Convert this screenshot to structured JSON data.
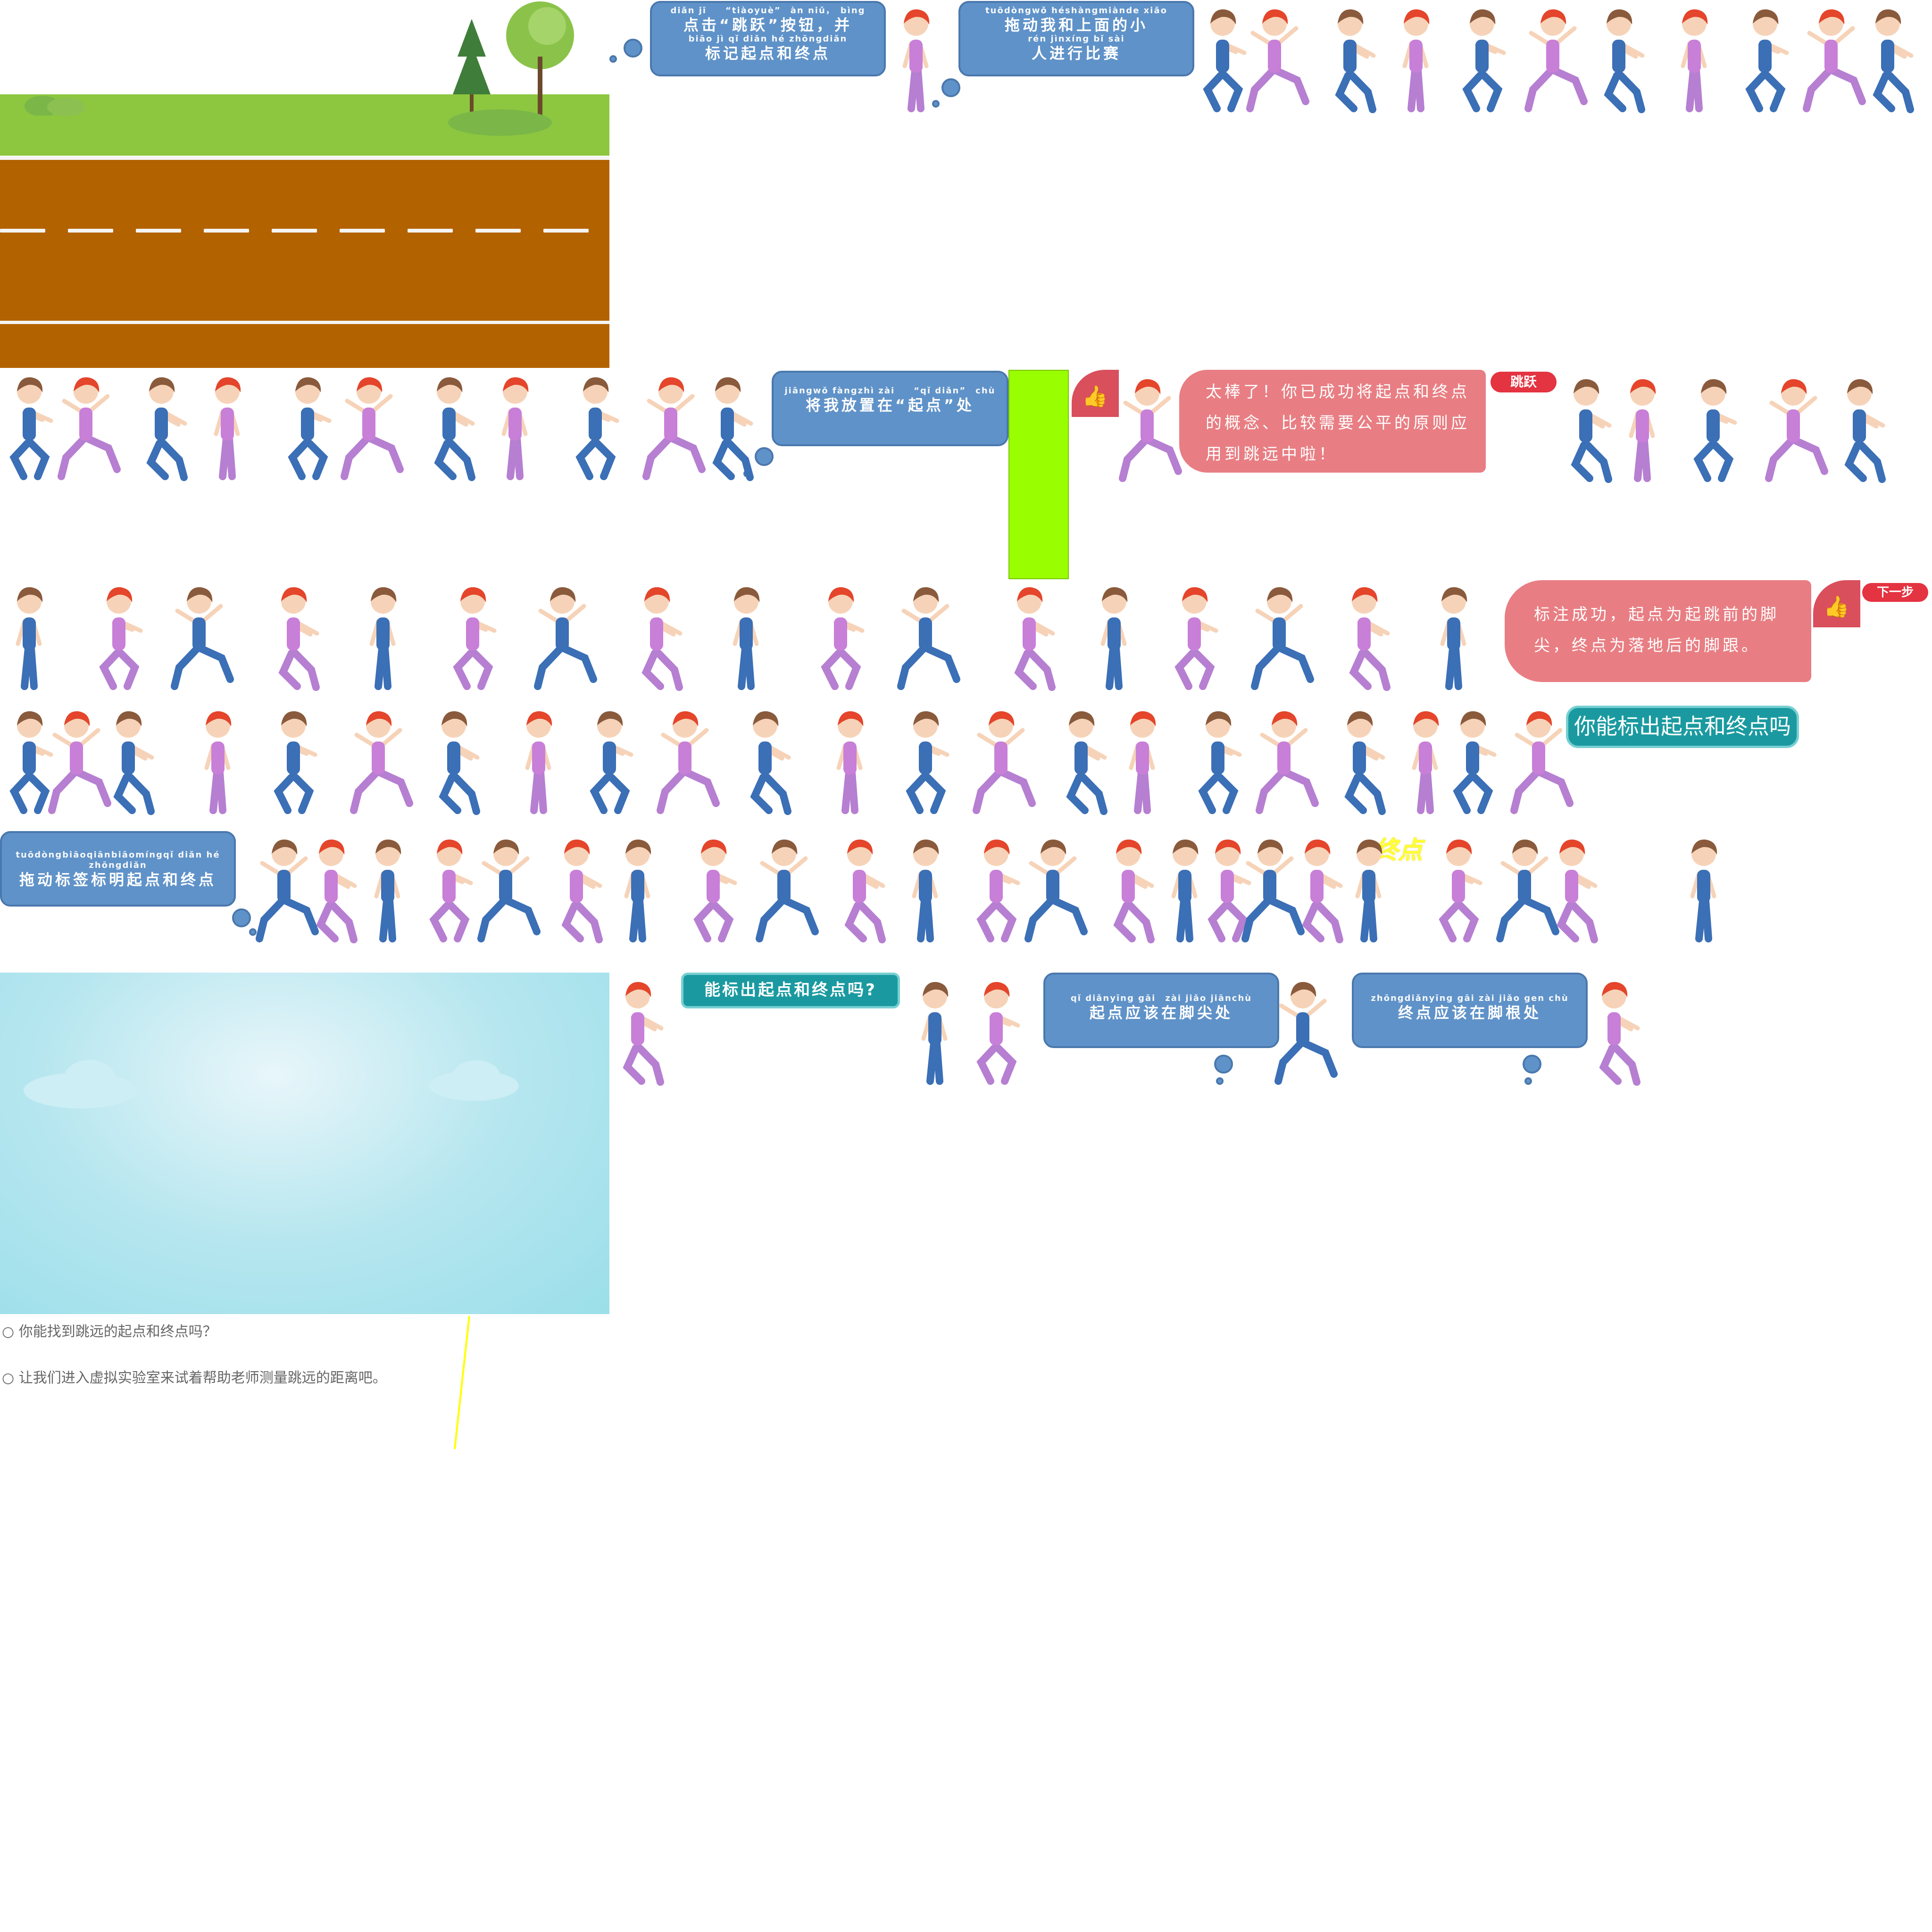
{
  "bubbles": {
    "click_jump": {
      "pinyin_1": "diǎn jī　　“tiàoyuè”　àn niǔ，　bìng",
      "text_1": "点击“跳跃”按钮，并",
      "pinyin_2": "biāo jì qǐ diǎn hé zhōngdiǎn",
      "text_2": "标记起点和终点"
    },
    "drag_race": {
      "pinyin_1": "tuōdòngwǒ héshàngmiànde xiǎo",
      "text_1": "拖动我和上面的小",
      "pinyin_2": "rén jìnxíng bǐ sài",
      "text_2": "人进行比赛"
    },
    "place_start": {
      "pinyin": "jiāngwǒ fàngzhì zài　　“qǐ diǎn”　chù",
      "text": "将我放置在“起点”处"
    },
    "drag_label": {
      "pinyin": "tuōdòngbiāoqiānbiāomíngqǐ diǎn hé zhōngdiǎn",
      "text": "拖动标签标明起点和终点"
    },
    "start_toe": {
      "pinyin": "qǐ diǎnyīng gāi　zài jiǎo jiānchù",
      "text": "起点应该在脚尖处"
    },
    "end_heel": {
      "pinyin": "zhōngdiǎnyīng gāi zài jiǎo gen chù",
      "text": "终点应该在脚根处"
    }
  },
  "praise": {
    "great": "太棒了！你已成功将起点和终点的概念、比较需要公平的原则应用到跳远中啦！",
    "marked": "标注成功，起点为起跳前的脚尖，终点为落地后的脚跟。"
  },
  "buttons": {
    "jump": "跳跃",
    "next": "下一步"
  },
  "teal": {
    "can_you_mark_big": "你能标出起点和终点吗",
    "can_you_mark_small": "能标出起点和终点吗?"
  },
  "label_end": "终点",
  "notes": [
    "○ 你能找到跳远的起点和终点吗？",
    "○ 让我们进入虚拟实验室来试着帮助老师测量跳远的距离吧。"
  ],
  "icons": {
    "thumb": "thumbs-up-icon"
  },
  "colors": {
    "blue_bubble": "#5f92c8",
    "pink_bubble": "#e87e83",
    "teal": "#1a9aa0",
    "green_marker": "#99ff00",
    "end_label": "#ffff33"
  }
}
